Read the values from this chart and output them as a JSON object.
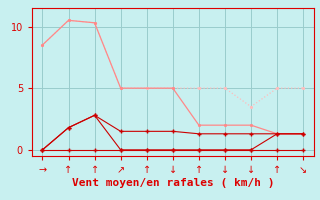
{
  "background_color": "#c8f0f0",
  "xlabel": "Vent moyen/en rafales ( km/h )",
  "xlabel_color": "#dd0000",
  "xlabel_fontsize": 8,
  "grid_color": "#99cccc",
  "x_ticks": [
    0,
    1,
    2,
    3,
    4,
    5,
    6,
    7,
    8,
    9,
    10
  ],
  "ylim": [
    -0.5,
    11.5
  ],
  "xlim": [
    -0.4,
    10.4
  ],
  "y_ticks": [
    0,
    5,
    10
  ],
  "line_light_pink_x": [
    0,
    1,
    2,
    3,
    4,
    5,
    6,
    7,
    8,
    9,
    10
  ],
  "line_light_pink_y": [
    8.5,
    10.5,
    10.3,
    5.0,
    5.0,
    5.0,
    5.0,
    5.0,
    3.5,
    5.0,
    5.0
  ],
  "line_light_pink_color": "#ffbbbb",
  "line_med_pink_x": [
    0,
    1,
    2,
    3,
    5,
    6,
    7,
    8,
    9,
    10
  ],
  "line_med_pink_y": [
    8.5,
    10.5,
    10.3,
    5.0,
    5.0,
    2.0,
    2.0,
    2.0,
    1.3,
    1.3
  ],
  "line_med_pink_color": "#ff8888",
  "line_dark1_x": [
    0,
    1,
    2,
    3,
    4,
    5,
    6,
    7,
    8,
    9,
    10
  ],
  "line_dark1_y": [
    0.0,
    1.8,
    2.8,
    1.5,
    1.5,
    1.5,
    1.3,
    1.3,
    1.3,
    1.3,
    1.3
  ],
  "line_dark1_color": "#cc0000",
  "line_dark2_x": [
    0,
    1,
    2,
    3,
    4,
    5,
    6,
    7,
    8,
    9,
    10
  ],
  "line_dark2_y": [
    0.0,
    1.8,
    2.8,
    0.0,
    0.0,
    0.0,
    0.0,
    0.0,
    0.0,
    1.3,
    1.3
  ],
  "line_dark2_color": "#cc0000",
  "line_dark3_x": [
    0,
    1,
    2,
    3,
    4,
    5,
    6,
    7,
    8,
    9,
    10
  ],
  "line_dark3_y": [
    0.0,
    0.0,
    0.0,
    0.0,
    0.0,
    0.0,
    0.0,
    0.0,
    0.0,
    0.0,
    0.0
  ],
  "line_dark3_color": "#cc0000"
}
